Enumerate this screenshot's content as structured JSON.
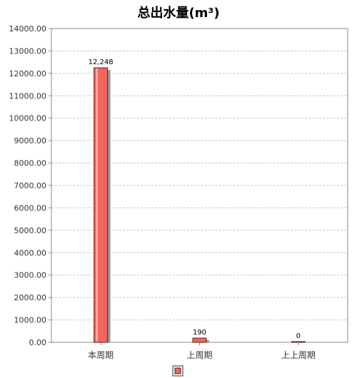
{
  "chart_data": {
    "type": "bar",
    "title": "总出水量(m³)",
    "categories": [
      "本周期",
      "上周期",
      "上上周期"
    ],
    "series": [
      {
        "color": "#f2665d",
        "values": [
          12248,
          190,
          0
        ],
        "value_labels": [
          "12,248",
          "190",
          "0"
        ]
      }
    ],
    "ylim": [
      0,
      14000
    ],
    "yticks": [
      "0.00",
      "1000.00",
      "2000.00",
      "3000.00",
      "4000.00",
      "5000.00",
      "6000.00",
      "7000.00",
      "8000.00",
      "9000.00",
      "10000.00",
      "11000.00",
      "12000.00",
      "13000.00",
      "14000.00"
    ],
    "grid": true,
    "legend": "bottom"
  }
}
